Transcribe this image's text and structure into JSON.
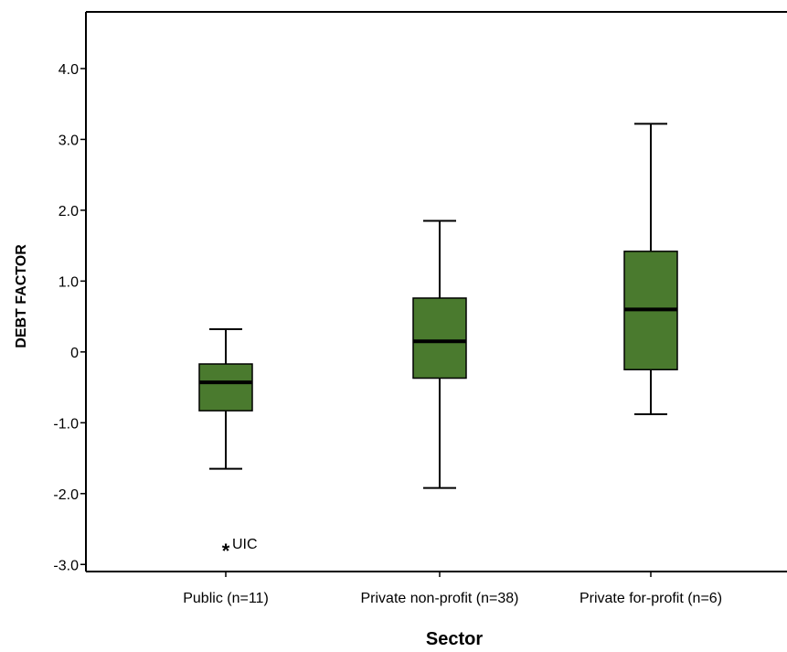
{
  "chart_data": {
    "type": "boxplot",
    "xlabel": "Sector",
    "ylabel": "DEBT FACTOR",
    "ylim": [
      -3.1,
      4.8
    ],
    "yticks": [
      {
        "value": 4,
        "label": "4.0"
      },
      {
        "value": 3,
        "label": "3.0"
      },
      {
        "value": 2,
        "label": "2.0"
      },
      {
        "value": 1,
        "label": "1.0"
      },
      {
        "value": 0,
        "label": "0"
      },
      {
        "value": -1,
        "label": "-1.0"
      },
      {
        "value": -2,
        "label": "-2.0"
      },
      {
        "value": -3,
        "label": "-3.0"
      }
    ],
    "box_color": "#4a7a2e",
    "categories": [
      "Public (n=11)",
      "Private non-profit (n=38)",
      "Private for-profit (n=6)"
    ],
    "boxes": [
      {
        "min": -1.65,
        "q1": -0.83,
        "median": -0.43,
        "q3": -0.17,
        "max": 0.32
      },
      {
        "min": -1.92,
        "q1": -0.37,
        "median": 0.15,
        "q3": 0.76,
        "max": 1.85
      },
      {
        "min": -0.88,
        "q1": -0.25,
        "median": 0.6,
        "q3": 1.42,
        "max": 3.22
      }
    ],
    "outliers": [
      {
        "category": 0,
        "value": -2.75,
        "marker": "*",
        "label": "UIC"
      }
    ]
  }
}
